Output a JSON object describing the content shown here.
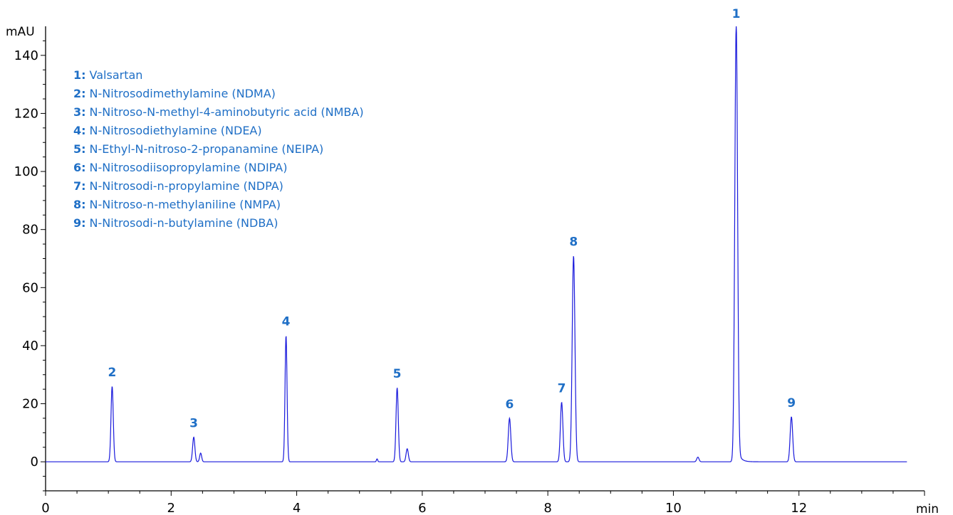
{
  "chart_data": {
    "type": "line",
    "xlabel": "min",
    "ylabel": "mAU",
    "xlim": [
      0,
      14
    ],
    "ylim": [
      -10,
      150
    ],
    "x_ticks": [
      0,
      2,
      4,
      6,
      8,
      10,
      12
    ],
    "y_ticks": [
      0,
      20,
      40,
      60,
      80,
      100,
      120,
      140
    ],
    "trace_color": "#1a1adc",
    "label_color": "#1f6fc6",
    "legend_placement": "top-left",
    "legend": [
      {
        "num": "1:",
        "name": "Valsartan"
      },
      {
        "num": "2:",
        "name": "N-Nitrosodimethylamine (NDMA)"
      },
      {
        "num": "3:",
        "name": "N-Nitroso-N-methyl-4-aminobutyric acid (NMBA)"
      },
      {
        "num": "4:",
        "name": "N-Nitrosodiethylamine (NDEA)"
      },
      {
        "num": "5:",
        "name": "N-Ethyl-N-nitroso-2-propanamine (NEIPA)"
      },
      {
        "num": "6:",
        "name": "N-Nitrosodiisopropylamine (NDIPA)"
      },
      {
        "num": "7:",
        "name": "N-Nitrosodi-n-propylamine (NDPA)"
      },
      {
        "num": "8:",
        "name": "N-Nitroso-n-methylaniline (NMPA)"
      },
      {
        "num": "9:",
        "name": "N-Nitrosodi-n-butylamine (NDBA)"
      }
    ],
    "peaks": [
      {
        "label": "2",
        "t": 1.06,
        "height": 26,
        "width": 0.018
      },
      {
        "label": "3",
        "t": 2.36,
        "height": 8.5,
        "width": 0.018
      },
      {
        "label": "",
        "t": 2.47,
        "height": 3,
        "width": 0.016
      },
      {
        "label": "4",
        "t": 3.83,
        "height": 43.5,
        "width": 0.016
      },
      {
        "label": "",
        "t": 5.28,
        "height": 1,
        "width": 0.01
      },
      {
        "label": "5",
        "t": 5.6,
        "height": 25.5,
        "width": 0.018
      },
      {
        "label": "",
        "t": 5.76,
        "height": 4.5,
        "width": 0.018
      },
      {
        "label": "6",
        "t": 7.39,
        "height": 15,
        "width": 0.02
      },
      {
        "label": "7",
        "t": 8.22,
        "height": 20.5,
        "width": 0.02
      },
      {
        "label": "8",
        "t": 8.41,
        "height": 71,
        "width": 0.022
      },
      {
        "label": "",
        "t": 10.39,
        "height": 1.6,
        "width": 0.018
      },
      {
        "label": "1",
        "t": 11.0,
        "height": 150,
        "width": 0.022
      },
      {
        "label": "9",
        "t": 11.88,
        "height": 15.5,
        "width": 0.02
      }
    ]
  }
}
